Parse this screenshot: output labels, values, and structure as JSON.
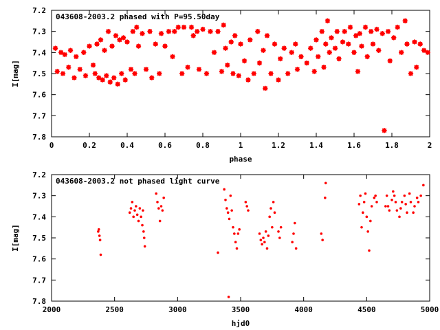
{
  "chart_data": [
    {
      "type": "scatter",
      "title": "043608-2003.2 phased with P=95.50day",
      "xlabel": "phase",
      "ylabel": "I[mag]",
      "xlim": [
        0,
        2
      ],
      "ylim": [
        7.2,
        7.8
      ],
      "y_inverted": true,
      "xticks": [
        "0",
        "0.2",
        "0.4",
        "0.6",
        "0.8",
        "1",
        "1.2",
        "1.4",
        "1.6",
        "1.8",
        "2"
      ],
      "yticks": [
        "7.2",
        "7.3",
        "7.4",
        "7.5",
        "7.6",
        "7.7",
        "7.8"
      ],
      "marker": "star",
      "color": "#ff0000",
      "grid": false,
      "points": [
        [
          0.02,
          7.38
        ],
        [
          0.03,
          7.49
        ],
        [
          0.05,
          7.4
        ],
        [
          0.06,
          7.5
        ],
        [
          0.07,
          7.41
        ],
        [
          0.09,
          7.47
        ],
        [
          0.1,
          7.39
        ],
        [
          0.12,
          7.52
        ],
        [
          0.13,
          7.42
        ],
        [
          0.15,
          7.48
        ],
        [
          0.17,
          7.4
        ],
        [
          0.18,
          7.51
        ],
        [
          0.2,
          7.37
        ],
        [
          0.22,
          7.46
        ],
        [
          0.23,
          7.5
        ],
        [
          0.24,
          7.36
        ],
        [
          0.25,
          7.52
        ],
        [
          0.26,
          7.34
        ],
        [
          0.27,
          7.53
        ],
        [
          0.28,
          7.39
        ],
        [
          0.29,
          7.51
        ],
        [
          0.3,
          7.3
        ],
        [
          0.31,
          7.54
        ],
        [
          0.32,
          7.37
        ],
        [
          0.33,
          7.52
        ],
        [
          0.34,
          7.32
        ],
        [
          0.35,
          7.55
        ],
        [
          0.36,
          7.34
        ],
        [
          0.37,
          7.5
        ],
        [
          0.38,
          7.33
        ],
        [
          0.39,
          7.53
        ],
        [
          0.4,
          7.35
        ],
        [
          0.42,
          7.48
        ],
        [
          0.43,
          7.3
        ],
        [
          0.44,
          7.5
        ],
        [
          0.45,
          7.28
        ],
        [
          0.46,
          7.37
        ],
        [
          0.48,
          7.31
        ],
        [
          0.5,
          7.48
        ],
        [
          0.52,
          7.3
        ],
        [
          0.53,
          7.52
        ],
        [
          0.55,
          7.36
        ],
        [
          0.57,
          7.5
        ],
        [
          0.58,
          7.31
        ],
        [
          0.6,
          7.37
        ],
        [
          0.62,
          7.3
        ],
        [
          0.64,
          7.42
        ],
        [
          0.65,
          7.3
        ],
        [
          0.67,
          7.28
        ],
        [
          0.69,
          7.5
        ],
        [
          0.7,
          7.28
        ],
        [
          0.72,
          7.47
        ],
        [
          0.74,
          7.28
        ],
        [
          0.75,
          7.32
        ],
        [
          0.77,
          7.3
        ],
        [
          0.78,
          7.48
        ],
        [
          0.8,
          7.29
        ],
        [
          0.82,
          7.5
        ],
        [
          0.84,
          7.3
        ],
        [
          0.86,
          7.4
        ],
        [
          0.88,
          7.3
        ],
        [
          0.9,
          7.49
        ],
        [
          0.91,
          7.27
        ],
        [
          0.92,
          7.38
        ],
        [
          0.93,
          7.46
        ],
        [
          0.95,
          7.35
        ],
        [
          0.96,
          7.5
        ],
        [
          0.97,
          7.32
        ],
        [
          0.99,
          7.51
        ],
        [
          1.0,
          7.36
        ],
        [
          1.02,
          7.44
        ],
        [
          1.04,
          7.53
        ],
        [
          1.05,
          7.34
        ],
        [
          1.07,
          7.5
        ],
        [
          1.09,
          7.3
        ],
        [
          1.1,
          7.45
        ],
        [
          1.12,
          7.39
        ],
        [
          1.13,
          7.57
        ],
        [
          1.14,
          7.32
        ],
        [
          1.16,
          7.5
        ],
        [
          1.18,
          7.36
        ],
        [
          1.2,
          7.53
        ],
        [
          1.21,
          7.43
        ],
        [
          1.23,
          7.38
        ],
        [
          1.25,
          7.5
        ],
        [
          1.27,
          7.4
        ],
        [
          1.29,
          7.36
        ],
        [
          1.3,
          7.48
        ],
        [
          1.32,
          7.42
        ],
        [
          1.35,
          7.45
        ],
        [
          1.37,
          7.38
        ],
        [
          1.39,
          7.49
        ],
        [
          1.4,
          7.34
        ],
        [
          1.41,
          7.42
        ],
        [
          1.43,
          7.3
        ],
        [
          1.44,
          7.47
        ],
        [
          1.45,
          7.36
        ],
        [
          1.46,
          7.25
        ],
        [
          1.47,
          7.4
        ],
        [
          1.48,
          7.33
        ],
        [
          1.5,
          7.38
        ],
        [
          1.51,
          7.3
        ],
        [
          1.52,
          7.43
        ],
        [
          1.54,
          7.35
        ],
        [
          1.55,
          7.3
        ],
        [
          1.57,
          7.36
        ],
        [
          1.58,
          7.28
        ],
        [
          1.6,
          7.4
        ],
        [
          1.61,
          7.32
        ],
        [
          1.62,
          7.49
        ],
        [
          1.63,
          7.31
        ],
        [
          1.64,
          7.37
        ],
        [
          1.66,
          7.28
        ],
        [
          1.67,
          7.42
        ],
        [
          1.69,
          7.3
        ],
        [
          1.7,
          7.36
        ],
        [
          1.72,
          7.29
        ],
        [
          1.73,
          7.39
        ],
        [
          1.75,
          7.31
        ],
        [
          1.76,
          7.77
        ],
        [
          1.78,
          7.3
        ],
        [
          1.79,
          7.44
        ],
        [
          1.81,
          7.33
        ],
        [
          1.83,
          7.28
        ],
        [
          1.85,
          7.4
        ],
        [
          1.87,
          7.25
        ],
        [
          1.88,
          7.36
        ],
        [
          1.9,
          7.5
        ],
        [
          1.92,
          7.35
        ],
        [
          1.93,
          7.47
        ],
        [
          1.95,
          7.36
        ],
        [
          1.97,
          7.39
        ],
        [
          1.99,
          7.4
        ]
      ]
    },
    {
      "type": "scatter",
      "title": "043608-2003.2 not phased light curve",
      "xlabel": "hjd0",
      "ylabel": "I[mag]",
      "xlim": [
        2000,
        5000
      ],
      "ylim": [
        7.2,
        7.8
      ],
      "y_inverted": true,
      "xticks": [
        "2000",
        "2500",
        "3000",
        "3500",
        "4000",
        "4500",
        "5000"
      ],
      "yticks": [
        "7.2",
        "7.3",
        "7.4",
        "7.5",
        "7.6",
        "7.7",
        "7.8"
      ],
      "marker": "dot",
      "color": "#ff0000",
      "grid": false,
      "points": [
        [
          2370,
          7.47
        ],
        [
          2375,
          7.46
        ],
        [
          2380,
          7.49
        ],
        [
          2385,
          7.51
        ],
        [
          2390,
          7.58
        ],
        [
          2620,
          7.38
        ],
        [
          2630,
          7.36
        ],
        [
          2640,
          7.33
        ],
        [
          2650,
          7.4
        ],
        [
          2660,
          7.37
        ],
        [
          2670,
          7.35
        ],
        [
          2680,
          7.39
        ],
        [
          2690,
          7.42
        ],
        [
          2700,
          7.36
        ],
        [
          2710,
          7.4
        ],
        [
          2720,
          7.44
        ],
        [
          2725,
          7.37
        ],
        [
          2730,
          7.47
        ],
        [
          2735,
          7.5
        ],
        [
          2740,
          7.54
        ],
        [
          2830,
          7.29
        ],
        [
          2840,
          7.33
        ],
        [
          2850,
          7.36
        ],
        [
          2860,
          7.42
        ],
        [
          2870,
          7.35
        ],
        [
          2880,
          7.37
        ],
        [
          2890,
          7.31
        ],
        [
          3320,
          7.57
        ],
        [
          3370,
          7.27
        ],
        [
          3380,
          7.32
        ],
        [
          3390,
          7.36
        ],
        [
          3400,
          7.38
        ],
        [
          3405,
          7.78
        ],
        [
          3410,
          7.41
        ],
        [
          3420,
          7.3
        ],
        [
          3430,
          7.37
        ],
        [
          3440,
          7.45
        ],
        [
          3450,
          7.48
        ],
        [
          3460,
          7.52
        ],
        [
          3470,
          7.55
        ],
        [
          3480,
          7.48
        ],
        [
          3490,
          7.46
        ],
        [
          3540,
          7.33
        ],
        [
          3550,
          7.35
        ],
        [
          3560,
          7.37
        ],
        [
          3650,
          7.48
        ],
        [
          3660,
          7.51
        ],
        [
          3670,
          7.53
        ],
        [
          3680,
          7.5
        ],
        [
          3690,
          7.52
        ],
        [
          3700,
          7.47
        ],
        [
          3710,
          7.55
        ],
        [
          3720,
          7.49
        ],
        [
          3730,
          7.4
        ],
        [
          3740,
          7.36
        ],
        [
          3750,
          7.45
        ],
        [
          3760,
          7.33
        ],
        [
          3770,
          7.38
        ],
        [
          3800,
          7.47
        ],
        [
          3810,
          7.5
        ],
        [
          3820,
          7.45
        ],
        [
          3910,
          7.52
        ],
        [
          3920,
          7.48
        ],
        [
          3930,
          7.43
        ],
        [
          3940,
          7.55
        ],
        [
          4140,
          7.48
        ],
        [
          4150,
          7.51
        ],
        [
          4170,
          7.31
        ],
        [
          4175,
          7.24
        ],
        [
          4440,
          7.34
        ],
        [
          4450,
          7.3
        ],
        [
          4460,
          7.45
        ],
        [
          4470,
          7.38
        ],
        [
          4480,
          7.33
        ],
        [
          4490,
          7.29
        ],
        [
          4500,
          7.4
        ],
        [
          4510,
          7.47
        ],
        [
          4520,
          7.56
        ],
        [
          4530,
          7.42
        ],
        [
          4540,
          7.35
        ],
        [
          4560,
          7.31
        ],
        [
          4570,
          7.3
        ],
        [
          4580,
          7.33
        ],
        [
          4650,
          7.35
        ],
        [
          4660,
          7.3
        ],
        [
          4670,
          7.35
        ],
        [
          4680,
          7.37
        ],
        [
          4700,
          7.32
        ],
        [
          4710,
          7.28
        ],
        [
          4720,
          7.3
        ],
        [
          4730,
          7.33
        ],
        [
          4740,
          7.37
        ],
        [
          4760,
          7.4
        ],
        [
          4770,
          7.36
        ],
        [
          4780,
          7.33
        ],
        [
          4800,
          7.3
        ],
        [
          4810,
          7.34
        ],
        [
          4820,
          7.38
        ],
        [
          4840,
          7.29
        ],
        [
          4850,
          7.33
        ],
        [
          4870,
          7.38
        ],
        [
          4880,
          7.35
        ],
        [
          4900,
          7.31
        ],
        [
          4910,
          7.33
        ],
        [
          4930,
          7.3
        ],
        [
          4950,
          7.25
        ]
      ]
    }
  ]
}
